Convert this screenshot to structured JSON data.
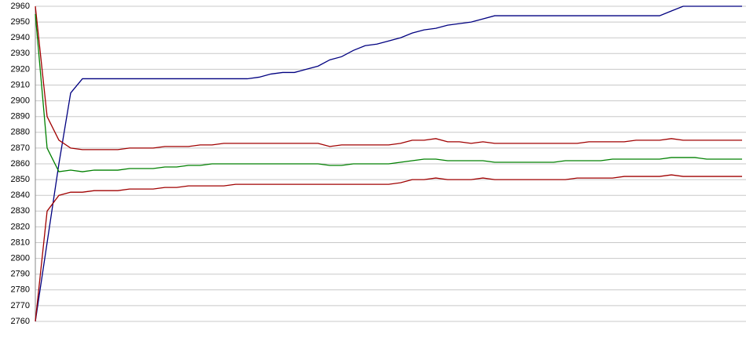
{
  "chart_data": {
    "type": "line",
    "categories": [
      null,
      null,
      null,
      null,
      null,
      null,
      null,
      null,
      null,
      null,
      null,
      null,
      null,
      null,
      null,
      null,
      null,
      null,
      null,
      null,
      null,
      null,
      null,
      null,
      null,
      null,
      null,
      null,
      null,
      null,
      null,
      null,
      null,
      null,
      null,
      null,
      null,
      null,
      null,
      null,
      null,
      null,
      null,
      null,
      null,
      null,
      null,
      null,
      null,
      null,
      null,
      null,
      null,
      null,
      null,
      null,
      null,
      null,
      null,
      null,
      null
    ],
    "series": [
      {
        "color": "#000080",
        "values": [
          2760,
          2810,
          2860,
          2905,
          2914,
          2914,
          2914,
          2914,
          2914,
          2914,
          2914,
          2914,
          2914,
          2914,
          2914,
          2914,
          2914,
          2914,
          2914,
          2915,
          2917,
          2918,
          2918,
          2920,
          2922,
          2926,
          2928,
          2932,
          2935,
          2936,
          2938,
          2940,
          2943,
          2945,
          2946,
          2948,
          2949,
          2950,
          2952,
          2954,
          2954,
          2954,
          2954,
          2954,
          2954,
          2954,
          2954,
          2954,
          2954,
          2954,
          2954,
          2954,
          2954,
          2954,
          2957,
          2960,
          2960,
          2960,
          2960,
          2960,
          2960
        ]
      },
      {
        "color": "#a00000",
        "values": [
          2960,
          2890,
          2875,
          2870,
          2869,
          2869,
          2869,
          2869,
          2870,
          2870,
          2870,
          2871,
          2871,
          2871,
          2872,
          2872,
          2873,
          2873,
          2873,
          2873,
          2873,
          2873,
          2873,
          2873,
          2873,
          2871,
          2872,
          2872,
          2872,
          2872,
          2872,
          2873,
          2875,
          2875,
          2876,
          2874,
          2874,
          2873,
          2874,
          2873,
          2873,
          2873,
          2873,
          2873,
          2873,
          2873,
          2873,
          2874,
          2874,
          2874,
          2874,
          2875,
          2875,
          2875,
          2876,
          2875,
          2875,
          2875,
          2875,
          2875,
          2875
        ]
      },
      {
        "color": "#008000",
        "values": [
          2955,
          2870,
          2855,
          2856,
          2855,
          2856,
          2856,
          2856,
          2857,
          2857,
          2857,
          2858,
          2858,
          2859,
          2859,
          2860,
          2860,
          2860,
          2860,
          2860,
          2860,
          2860,
          2860,
          2860,
          2860,
          2859,
          2859,
          2860,
          2860,
          2860,
          2860,
          2861,
          2862,
          2863,
          2863,
          2862,
          2862,
          2862,
          2862,
          2861,
          2861,
          2861,
          2861,
          2861,
          2861,
          2862,
          2862,
          2862,
          2862,
          2863,
          2863,
          2863,
          2863,
          2863,
          2864,
          2864,
          2864,
          2863,
          2863,
          2863,
          2863
        ]
      },
      {
        "color": "#a00000",
        "values": [
          2760,
          2830,
          2840,
          2842,
          2842,
          2843,
          2843,
          2843,
          2844,
          2844,
          2844,
          2845,
          2845,
          2846,
          2846,
          2846,
          2846,
          2847,
          2847,
          2847,
          2847,
          2847,
          2847,
          2847,
          2847,
          2847,
          2847,
          2847,
          2847,
          2847,
          2847,
          2848,
          2850,
          2850,
          2851,
          2850,
          2850,
          2850,
          2851,
          2850,
          2850,
          2850,
          2850,
          2850,
          2850,
          2850,
          2851,
          2851,
          2851,
          2851,
          2852,
          2852,
          2852,
          2852,
          2853,
          2852,
          2852,
          2852,
          2852,
          2852,
          2852
        ]
      }
    ],
    "ylim": [
      2760,
      2960
    ],
    "yticks": [
      2760,
      2770,
      2780,
      2790,
      2800,
      2810,
      2820,
      2830,
      2840,
      2850,
      2860,
      2870,
      2880,
      2890,
      2900,
      2910,
      2920,
      2930,
      2940,
      2950,
      2960
    ],
    "grid": true
  }
}
